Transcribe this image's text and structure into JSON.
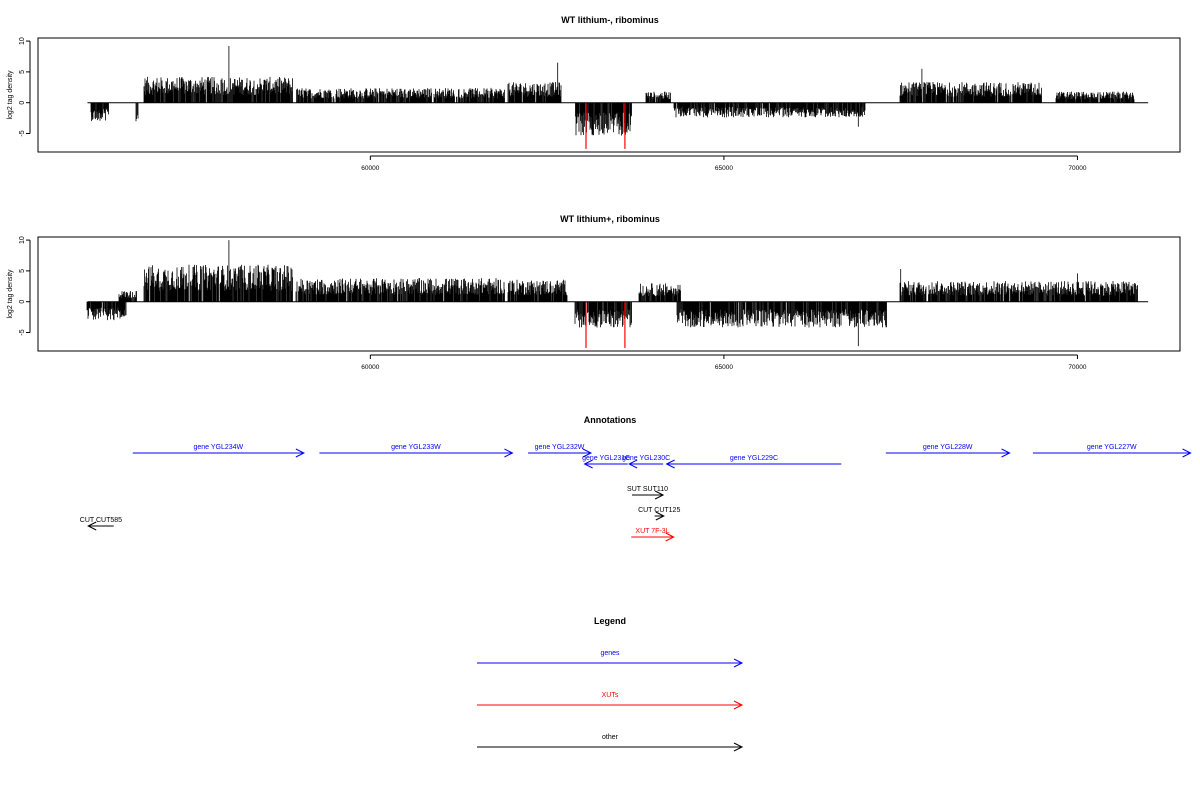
{
  "chart_data": [
    {
      "type": "bar",
      "title": "WT lithium-, ribominus",
      "xlabel": "",
      "ylabel": "log2 tag density",
      "xlim": [
        55300,
        71450
      ],
      "ylim": [
        -8,
        10.5
      ],
      "xticks": [
        60000,
        65000,
        70000
      ],
      "yticks": [
        -5,
        0,
        5,
        10
      ],
      "baseline": {
        "x": [
          56000,
          71000
        ],
        "y": 0
      },
      "highlight_color": "#ff0000",
      "highlights": [
        {
          "x": 63050,
          "y": -7.5
        },
        {
          "x": 63600,
          "y": -7.5
        }
      ],
      "profile": [
        {
          "x": [
            56050,
            56300
          ],
          "y": -2.5
        },
        {
          "x": [
            56700,
            56720
          ],
          "y": -2.8
        },
        {
          "x": [
            56800,
            58900
          ],
          "y": 3.5
        },
        {
          "x": [
            58950,
            61900
          ],
          "y": 2.0
        },
        {
          "x": [
            61950,
            62700
          ],
          "y": 2.8
        },
        {
          "x": [
            62900,
            63700
          ],
          "y": -4.5
        },
        {
          "x": [
            63900,
            64250
          ],
          "y": 1.5
        },
        {
          "x": [
            64300,
            67000
          ],
          "y": -2.0
        },
        {
          "x": [
            67500,
            69500
          ],
          "y": 2.8
        },
        {
          "x": [
            69700,
            70800
          ],
          "y": 1.5
        }
      ],
      "peaks": [
        {
          "x": 58000,
          "y": 9.2
        },
        {
          "x": 62650,
          "y": 6.5
        },
        {
          "x": 66900,
          "y": -3.9
        },
        {
          "x": 67800,
          "y": 5.5
        }
      ]
    },
    {
      "type": "bar",
      "title": "WT lithium+, ribominus",
      "xlabel": "",
      "ylabel": "log2 tag density",
      "xlim": [
        55300,
        71450
      ],
      "ylim": [
        -8,
        10.5
      ],
      "xticks": [
        60000,
        65000,
        70000
      ],
      "yticks": [
        -5,
        0,
        5,
        10
      ],
      "baseline": {
        "x": [
          56000,
          71000
        ],
        "y": 0
      },
      "highlight_color": "#ff0000",
      "highlights": [
        {
          "x": 63050,
          "y": -7.5
        },
        {
          "x": 63600,
          "y": -7.5
        }
      ],
      "profile": [
        {
          "x": [
            56000,
            56550
          ],
          "y": -2.5
        },
        {
          "x": [
            56450,
            56700
          ],
          "y": 1.5
        },
        {
          "x": [
            56800,
            58900
          ],
          "y": 5.0
        },
        {
          "x": [
            58950,
            61900
          ],
          "y": 3.2
        },
        {
          "x": [
            61950,
            62800
          ],
          "y": 3.0
        },
        {
          "x": [
            62900,
            63700
          ],
          "y": -3.5
        },
        {
          "x": [
            63800,
            64400
          ],
          "y": 2.5
        },
        {
          "x": [
            64350,
            67300
          ],
          "y": -3.5
        },
        {
          "x": [
            67500,
            70850
          ],
          "y": 2.8
        }
      ],
      "peaks": [
        {
          "x": 58000,
          "y": 10.0
        },
        {
          "x": 66900,
          "y": -7.2
        },
        {
          "x": 67500,
          "y": 5.3
        },
        {
          "x": 70000,
          "y": 4.6
        }
      ]
    },
    {
      "type": "annotation-track",
      "title": "Annotations",
      "xlim": [
        55300,
        71450
      ],
      "features": [
        {
          "label": "gene YGL234W",
          "start": 56640,
          "end": 59060,
          "strand": "+",
          "row": 0,
          "color": "#0000ff"
        },
        {
          "label": "gene YGL233W",
          "start": 59280,
          "end": 62010,
          "strand": "+",
          "row": 0,
          "color": "#0000ff"
        },
        {
          "label": "gene YGL232W",
          "start": 62230,
          "end": 63120,
          "strand": "+",
          "row": 0,
          "color": "#0000ff"
        },
        {
          "label": "gene YGL231C",
          "start": 63030,
          "end": 63640,
          "strand": "-",
          "row": 1,
          "color": "#0000ff"
        },
        {
          "label": "gene YGL230C",
          "start": 63660,
          "end": 64140,
          "strand": "-",
          "row": 1,
          "color": "#0000ff"
        },
        {
          "label": "gene YGL229C",
          "start": 64190,
          "end": 66660,
          "strand": "-",
          "row": 1,
          "color": "#0000ff"
        },
        {
          "label": "gene YGL228W",
          "start": 67290,
          "end": 69040,
          "strand": "+",
          "row": 0,
          "color": "#0000ff"
        },
        {
          "label": "gene YGL227W",
          "start": 69370,
          "end": 71600,
          "strand": "+",
          "row": 0,
          "color": "#0000ff"
        },
        {
          "label": "SUT SUT110",
          "start": 63700,
          "end": 64140,
          "strand": "+",
          "row": 2,
          "color": "#000000"
        },
        {
          "label": "CUT CUT125",
          "start": 64020,
          "end": 64150,
          "strand": "+",
          "row": 3,
          "color": "#000000"
        },
        {
          "label": "XUT 7F-3L",
          "start": 63690,
          "end": 64290,
          "strand": "+",
          "row": 4,
          "color": "#ff0000"
        },
        {
          "label": "CUT CUT585",
          "start": 56010,
          "end": 56370,
          "strand": "-",
          "row": 5,
          "color": "#000000"
        }
      ]
    },
    {
      "type": "legend",
      "title": "Legend",
      "entries": [
        {
          "label": "genes",
          "color": "#0000ff"
        },
        {
          "label": "XUTs",
          "color": "#ff0000"
        },
        {
          "label": "other",
          "color": "#000000"
        }
      ]
    }
  ]
}
